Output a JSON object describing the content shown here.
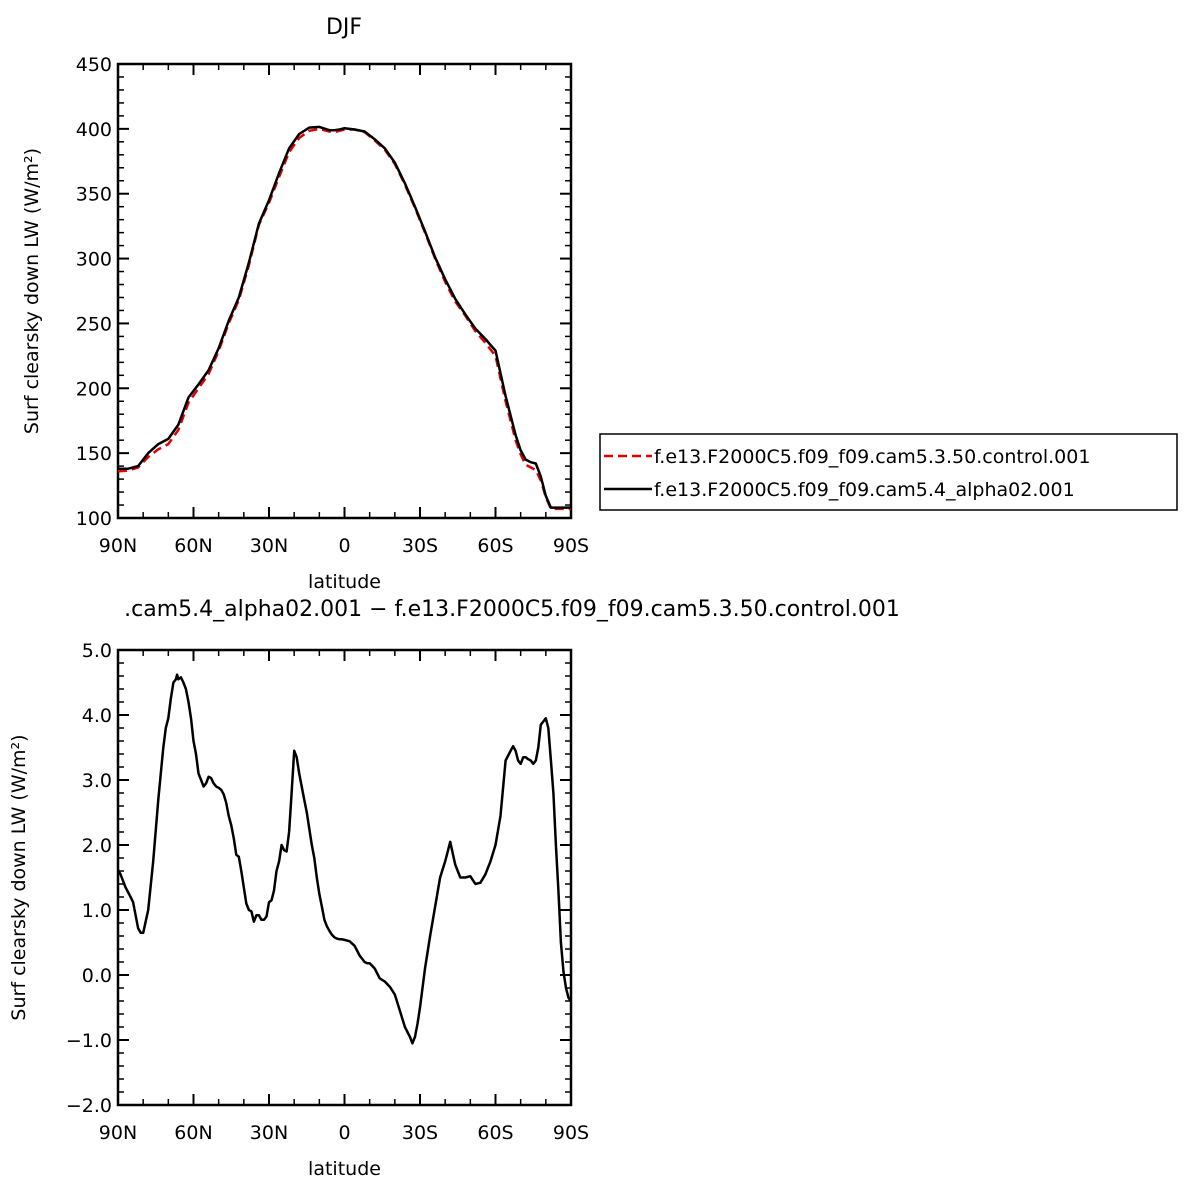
{
  "chart_data": [
    {
      "type": "line",
      "title": "DJF",
      "xlabel": "latitude",
      "ylabel": "Surf clearsky down LW (W/m²)",
      "xlim": [
        90,
        -90
      ],
      "ylim": [
        100,
        450
      ],
      "xticks": [
        90,
        60,
        30,
        0,
        -30,
        -60,
        -90
      ],
      "xtick_labels": [
        "90N",
        "60N",
        "30N",
        "0",
        "30S",
        "60S",
        "90S"
      ],
      "yticks": [
        100,
        150,
        200,
        250,
        300,
        350,
        400,
        450
      ],
      "ytick_labels": [
        "100",
        "150",
        "200",
        "250",
        "300",
        "350",
        "400",
        "450"
      ],
      "grid": false,
      "legend_position": "right",
      "x": [
        90,
        86,
        82,
        78,
        74,
        70,
        66,
        62,
        58,
        54,
        50,
        46,
        42,
        38,
        34,
        30,
        26,
        22,
        18,
        14,
        10,
        6,
        4,
        2,
        0,
        -4,
        -8,
        -12,
        -16,
        -20,
        -24,
        -28,
        -32,
        -36,
        -40,
        -44,
        -48,
        -52,
        -56,
        -60,
        -64,
        -68,
        -70,
        -72,
        -74,
        -76,
        -78,
        -80,
        -82,
        -84,
        -86,
        -88,
        -90
      ],
      "series": [
        {
          "name": "f.e13.F2000C5.f09_f09.cam5.3.50.control.001",
          "color": "#e00000",
          "dash": true,
          "values": [
            136,
            136.5,
            139,
            147,
            153,
            157,
            168,
            189,
            200,
            211,
            229,
            250,
            268,
            295,
            326,
            343,
            363,
            382,
            393,
            398.5,
            400,
            398,
            397.5,
            398.5,
            399.5,
            399.5,
            397.5,
            391,
            384,
            373,
            357,
            339,
            320,
            300,
            282,
            267,
            256,
            244,
            235,
            225,
            190,
            160,
            149,
            141,
            139,
            137,
            129,
            116,
            107,
            107,
            107,
            107,
            107
          ]
        },
        {
          "name": "f.e13.F2000C5.f09_f09.cam5.4_alpha02.001",
          "color": "#000000",
          "dash": false,
          "values": [
            138,
            138,
            140,
            150,
            157,
            161,
            172,
            193,
            203,
            214,
            231,
            252,
            270,
            297,
            327,
            345,
            366,
            385,
            396,
            401,
            401.5,
            399,
            399,
            399.5,
            400.5,
            399.5,
            398,
            392,
            385,
            374,
            358,
            340,
            321,
            301,
            284,
            269,
            257,
            246,
            238,
            229,
            194,
            164,
            152,
            145,
            143,
            142,
            132,
            117,
            108,
            108,
            108,
            108,
            108
          ]
        }
      ]
    },
    {
      "type": "line",
      "title": ".cam5.4_alpha02.001 − f.e13.F2000C5.f09_f09.cam5.3.50.control.001",
      "xlabel": "latitude",
      "ylabel": "Surf clearsky down LW (W/m²)",
      "xlim": [
        90,
        -90
      ],
      "ylim": [
        -2.0,
        5.0
      ],
      "xticks": [
        90,
        60,
        30,
        0,
        -30,
        -60,
        -90
      ],
      "xtick_labels": [
        "90N",
        "60N",
        "30N",
        "0",
        "30S",
        "60S",
        "90S"
      ],
      "yticks": [
        -2.0,
        -1.0,
        0.0,
        1.0,
        2.0,
        3.0,
        4.0,
        5.0
      ],
      "ytick_labels": [
        "−2.0",
        "−1.0",
        "0.0",
        "1.0",
        "2.0",
        "3.0",
        "4.0",
        "5.0"
      ],
      "grid": false,
      "x": [
        90,
        89,
        87,
        85,
        84,
        82,
        81,
        80,
        78,
        76,
        74,
        72,
        71,
        70,
        69,
        68,
        67,
        66.5,
        66,
        65,
        64,
        63,
        62,
        61,
        60,
        59,
        58,
        57,
        56,
        55,
        54,
        53,
        52,
        51,
        50,
        49,
        48,
        47,
        46,
        45,
        44,
        43,
        42,
        41,
        40,
        39,
        38,
        37,
        36,
        35,
        34,
        33,
        32,
        31,
        30,
        29,
        28,
        27,
        26,
        25,
        24,
        23,
        22,
        21,
        20,
        19,
        18,
        17,
        16,
        15,
        14,
        13,
        12,
        11,
        10,
        9,
        8,
        7,
        6,
        5,
        4,
        3,
        2,
        1,
        0,
        -2,
        -4,
        -6,
        -8,
        -9,
        -10,
        -12,
        -14,
        -16,
        -18,
        -20,
        -22,
        -24,
        -26,
        -27,
        -28,
        -29,
        -30,
        -31,
        -32,
        -34,
        -36,
        -38,
        -40,
        -42,
        -44,
        -46,
        -48,
        -50,
        -52,
        -54,
        -56,
        -58,
        -60,
        -62,
        -64,
        -66,
        -67,
        -68,
        -69,
        -70,
        -71,
        -72,
        -73,
        -74,
        -75,
        -76,
        -77,
        -78,
        -79,
        -80,
        -81,
        -82,
        -83,
        -84,
        -85,
        -86,
        -87,
        -88,
        -89,
        -90
      ],
      "series": [
        {
          "name": "",
          "color": "#000000",
          "dash": false,
          "values": [
            1.62,
            1.55,
            1.35,
            1.2,
            1.12,
            0.72,
            0.65,
            0.65,
            1.0,
            1.75,
            2.7,
            3.5,
            3.8,
            3.95,
            4.25,
            4.5,
            4.55,
            4.62,
            4.55,
            4.58,
            4.5,
            4.4,
            4.2,
            3.95,
            3.6,
            3.4,
            3.1,
            3.0,
            2.9,
            2.95,
            3.05,
            3.03,
            2.95,
            2.9,
            2.88,
            2.85,
            2.78,
            2.65,
            2.45,
            2.3,
            2.1,
            1.85,
            1.82,
            1.6,
            1.35,
            1.1,
            1.0,
            0.98,
            0.82,
            0.92,
            0.92,
            0.85,
            0.85,
            0.9,
            1.12,
            1.15,
            1.3,
            1.6,
            1.75,
            2.0,
            1.92,
            1.9,
            2.2,
            2.8,
            3.45,
            3.35,
            3.1,
            2.9,
            2.7,
            2.5,
            2.25,
            2.0,
            1.8,
            1.5,
            1.25,
            1.05,
            0.85,
            0.75,
            0.68,
            0.62,
            0.58,
            0.56,
            0.55,
            0.55,
            0.54,
            0.52,
            0.45,
            0.3,
            0.2,
            0.18,
            0.18,
            0.1,
            -0.05,
            -0.1,
            -0.18,
            -0.3,
            -0.55,
            -0.8,
            -0.95,
            -1.05,
            -0.95,
            -0.75,
            -0.5,
            -0.2,
            0.1,
            0.6,
            1.05,
            1.5,
            1.75,
            2.05,
            1.7,
            1.5,
            1.5,
            1.52,
            1.4,
            1.42,
            1.55,
            1.75,
            2.0,
            2.45,
            3.3,
            3.45,
            3.52,
            3.45,
            3.3,
            3.25,
            3.35,
            3.35,
            3.32,
            3.3,
            3.25,
            3.3,
            3.5,
            3.85,
            3.9,
            3.95,
            3.8,
            3.3,
            2.8,
            2.0,
            1.3,
            0.5,
            0.05,
            -0.2,
            -0.35,
            -0.4
          ]
        }
      ]
    }
  ]
}
